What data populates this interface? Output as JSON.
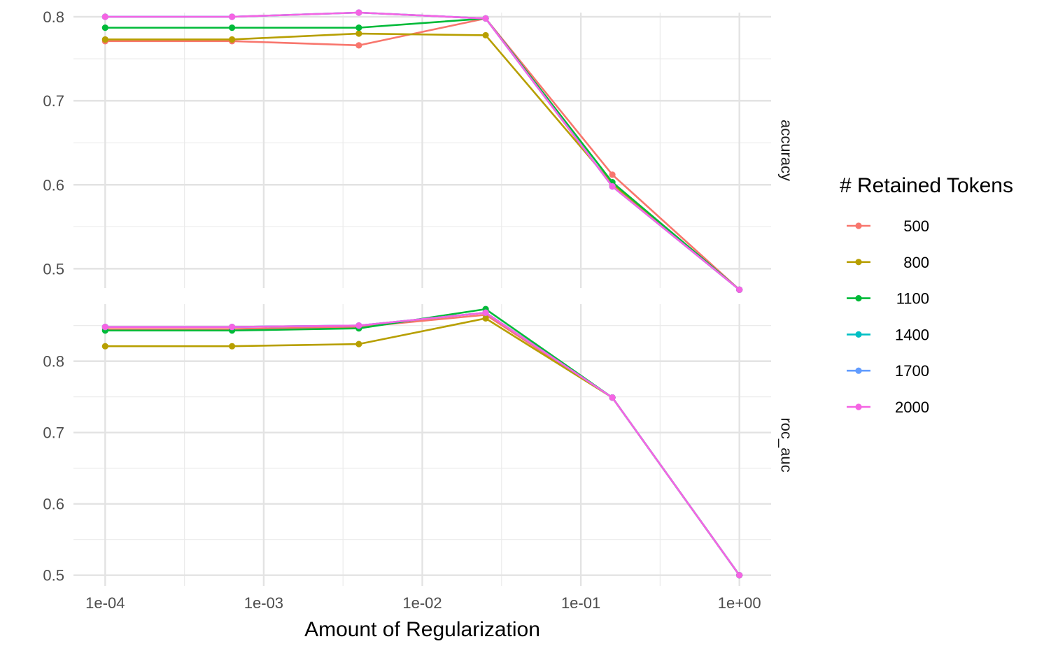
{
  "chart_data": {
    "type": "line",
    "xlabel": "Amount of Regularization",
    "x_scale": "log10",
    "x": [
      0.0001,
      0.000631,
      0.00398,
      0.0251,
      0.158,
      1.0
    ],
    "x_tick_values": [
      0.0001,
      0.001,
      0.01,
      0.1,
      1.0
    ],
    "x_tick_labels": [
      "1e-04",
      "1e-03",
      "1e-02",
      "1e-01",
      "1e+00"
    ],
    "legend": {
      "title": "# Retained Tokens",
      "position": "right"
    },
    "grid": true,
    "facets": [
      {
        "label": "accuracy",
        "ylim": [
          0.477,
          0.805
        ],
        "y_ticks": [
          0.5,
          0.6,
          0.7,
          0.8
        ],
        "y_tick_labels": [
          "0.5",
          "0.6",
          "0.7",
          "0.8"
        ],
        "series": [
          {
            "name": "500",
            "color": "#F8766D",
            "values": [
              0.771,
              0.771,
              0.766,
              0.798,
              0.612,
              0.475
            ]
          },
          {
            "name": "800",
            "color": "#B79F00",
            "values": [
              0.773,
              0.773,
              0.78,
              0.778,
              0.601,
              0.475
            ]
          },
          {
            "name": "1100",
            "color": "#00BA38",
            "values": [
              0.787,
              0.787,
              0.787,
              0.798,
              0.603,
              0.475
            ]
          },
          {
            "name": "1400",
            "color": "#00BFC4",
            "values": [
              0.8,
              0.8,
              0.805,
              0.798,
              0.598,
              0.475
            ]
          },
          {
            "name": "1700",
            "color": "#619CFF",
            "values": [
              0.8,
              0.8,
              0.805,
              0.798,
              0.598,
              0.475
            ]
          },
          {
            "name": "2000",
            "color": "#F564E3",
            "values": [
              0.8,
              0.8,
              0.805,
              0.798,
              0.598,
              0.475
            ]
          }
        ]
      },
      {
        "label": "roc_auc",
        "ylim": [
          0.485,
          0.88
        ],
        "y_ticks": [
          0.5,
          0.6,
          0.7,
          0.8
        ],
        "y_tick_labels": [
          "0.5",
          "0.6",
          "0.7",
          "0.8"
        ],
        "series": [
          {
            "name": "500",
            "color": "#F8766D",
            "values": [
              0.845,
              0.845,
              0.848,
              0.865,
              0.749,
              0.5
            ]
          },
          {
            "name": "800",
            "color": "#B79F00",
            "values": [
              0.821,
              0.821,
              0.824,
              0.86,
              0.749,
              0.5
            ]
          },
          {
            "name": "1100",
            "color": "#00BA38",
            "values": [
              0.843,
              0.843,
              0.846,
              0.873,
              0.749,
              0.5
            ]
          },
          {
            "name": "1400",
            "color": "#00BFC4",
            "values": [
              0.848,
              0.848,
              0.85,
              0.868,
              0.749,
              0.5
            ]
          },
          {
            "name": "1700",
            "color": "#619CFF",
            "values": [
              0.848,
              0.848,
              0.85,
              0.868,
              0.749,
              0.5
            ]
          },
          {
            "name": "2000",
            "color": "#F564E3",
            "values": [
              0.848,
              0.848,
              0.85,
              0.868,
              0.749,
              0.5
            ]
          }
        ]
      }
    ]
  }
}
